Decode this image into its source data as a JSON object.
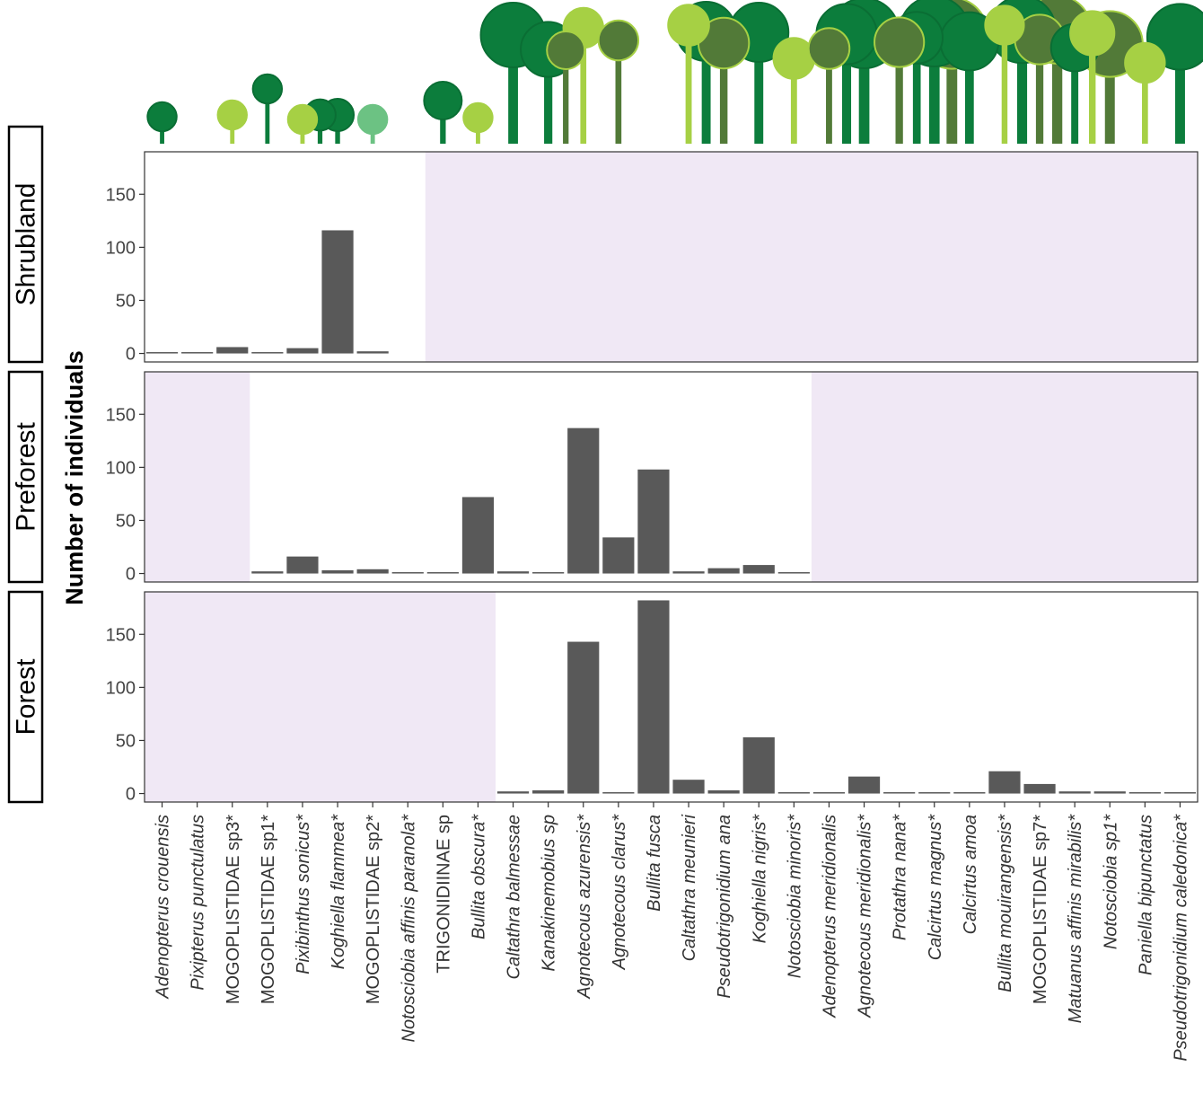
{
  "chart_data": {
    "type": "bar",
    "ylabel": "Number of individuals",
    "yticks": [
      0,
      50,
      100,
      150
    ],
    "ylim": [
      -8,
      190
    ],
    "colors": {
      "bar": "#595959",
      "shade": "#f0e8f5",
      "dark_green": "#0c7d3c",
      "olive_green": "#527a38",
      "lime_green": "#a6d044",
      "mint_green": "#6cc283"
    },
    "species": [
      {
        "label": "Adenopterus crouensis",
        "italic": true,
        "lollipop": {
          "height": 0.3,
          "size": 0.27,
          "color": "dark_green"
        }
      },
      {
        "label": "Pixipterus punctulatus",
        "italic": true,
        "lollipop": null
      },
      {
        "label": "MOGOPLISTIDAE sp3*",
        "italic": false,
        "lollipop": {
          "height": 0.32,
          "size": 0.27,
          "color": "lime_green"
        }
      },
      {
        "label": "MOGOPLISTIDAE sp1*",
        "italic": false,
        "lollipop": {
          "height": 0.61,
          "size": 0.27,
          "color": "dark_green"
        }
      },
      {
        "label": "Pixibinthus sonicus*",
        "italic": true,
        "lollipop": {
          "height": 0.27,
          "size": 0.27,
          "color": "lime_green"
        }
      },
      {
        "label": "Koghiella flammea*",
        "italic": true,
        "lollipop": {
          "height": 0.32,
          "size": 0.3,
          "color": "dark_green"
        }
      },
      {
        "label": "MOGOPLISTIDAE sp2*",
        "italic": false,
        "lollipop": {
          "height": 0.27,
          "size": 0.27,
          "color": "mint_green"
        }
      },
      {
        "label": "Notosciobia affinis paranola*",
        "italic": true,
        "lollipop": null
      },
      {
        "label": "TRIGONIDIINAE sp",
        "italic": false,
        "lollipop": {
          "height": 0.48,
          "size": 0.35,
          "color": "dark_green"
        }
      },
      {
        "label": "Bullita obscura*",
        "italic": true,
        "lollipop": {
          "height": 0.29,
          "size": 0.27,
          "color": "lime_green"
        }
      },
      {
        "label": "Caltathra balmessae",
        "italic": true,
        "lollipop": {
          "height": 1.21,
          "size": 0.6,
          "color": "dark_green"
        }
      },
      {
        "label": "Kanakinemobius sp",
        "italic": true,
        "lollipop": {
          "height": 1.05,
          "size": 0.51,
          "color": "dark_green"
        }
      },
      {
        "label": "Agnotecous azurensis*",
        "italic": true,
        "lollipop": {
          "height": 1.29,
          "size": 0.37,
          "color": "lime_green"
        }
      },
      {
        "label": "Agnotecous clarus*",
        "italic": true,
        "lollipop": {
          "height": 1.15,
          "size": 0.37,
          "color": "olive_green"
        }
      },
      {
        "label": "Bullita fusca",
        "italic": true,
        "lollipop": null
      },
      {
        "label": "Caltathra meunieri",
        "italic": true,
        "lollipop": {
          "height": 1.32,
          "size": 0.38,
          "color": "lime_green"
        }
      },
      {
        "label": "Pseudotrigonidium ana",
        "italic": true,
        "lollipop": {
          "height": 1.12,
          "size": 0.47,
          "color": "olive_green"
        }
      },
      {
        "label": "Koghiella nigris*",
        "italic": true,
        "lollipop": {
          "height": 1.24,
          "size": 0.55,
          "color": "dark_green"
        }
      },
      {
        "label": "Notosciobia minoris*",
        "italic": true,
        "lollipop": {
          "height": 0.95,
          "size": 0.38,
          "color": "lime_green"
        }
      },
      {
        "label": "Adenopterus meridionalis",
        "italic": true,
        "lollipop": {
          "height": 1.06,
          "size": 0.38,
          "color": "olive_green"
        }
      },
      {
        "label": "Agnotecous meridionalis*",
        "italic": true,
        "lollipop": {
          "height": 1.23,
          "size": 0.65,
          "color": "dark_green"
        }
      },
      {
        "label": "Protathra nana*",
        "italic": true,
        "lollipop": {
          "height": 1.13,
          "size": 0.46,
          "color": "olive_green"
        }
      },
      {
        "label": "Calcirtus magnus*",
        "italic": true,
        "lollipop": {
          "height": 1.25,
          "size": 0.65,
          "color": "dark_green"
        }
      },
      {
        "label": "Calcirtus amoa",
        "italic": true,
        "lollipop": {
          "height": 1.14,
          "size": 0.54,
          "color": "dark_green"
        }
      },
      {
        "label": "Bullita mouirangensis*",
        "italic": true,
        "lollipop": {
          "height": 1.32,
          "size": 0.36,
          "color": "lime_green"
        }
      },
      {
        "label": "MOGOPLISTIDAE sp7*",
        "italic": false,
        "lollipop": {
          "height": 1.16,
          "size": 0.46,
          "color": "olive_green"
        }
      },
      {
        "label": "Matuanus affinis mirabilis*",
        "italic": true,
        "lollipop": {
          "height": 1.07,
          "size": 0.44,
          "color": "dark_green"
        }
      },
      {
        "label": "Notosciobia sp1*",
        "italic": true,
        "lollipop": {
          "height": 1.11,
          "size": 0.61,
          "color": "olive_green"
        }
      },
      {
        "label": "Paniella bipunctatus",
        "italic": true,
        "lollipop": {
          "height": 0.9,
          "size": 0.37,
          "color": "lime_green"
        }
      },
      {
        "label": "Pseudotrigonidium caledonica*",
        "italic": true,
        "lollipop": {
          "height": 1.19,
          "size": 0.61,
          "color": "dark_green"
        }
      }
    ],
    "extra_circles": [
      {
        "between": [
          4,
          5
        ],
        "height": 0.32,
        "size": 0.29,
        "color": "dark_green"
      },
      {
        "between": [
          11,
          12
        ],
        "height": 1.04,
        "size": 0.35,
        "color": "olive_green"
      },
      {
        "between": [
          15,
          16
        ],
        "height": 1.25,
        "size": 0.55,
        "color": "dark_green"
      },
      {
        "between": [
          19,
          20
        ],
        "height": 1.22,
        "size": 0.56,
        "color": "dark_green"
      },
      {
        "between": [
          21,
          22
        ],
        "height": 1.18,
        "size": 0.48,
        "color": "dark_green"
      },
      {
        "between": [
          22,
          23
        ],
        "height": 1.23,
        "size": 0.66,
        "color": "olive_green"
      },
      {
        "between": [
          24,
          25
        ],
        "height": 1.27,
        "size": 0.62,
        "color": "dark_green"
      },
      {
        "between": [
          25,
          26
        ],
        "height": 1.27,
        "size": 0.63,
        "color": "olive_green"
      },
      {
        "between": [
          26,
          27
        ],
        "height": 1.23,
        "size": 0.41,
        "color": "lime_green"
      }
    ],
    "panels": [
      {
        "name": "Shrubland",
        "present_range": [
          0,
          7
        ],
        "values": [
          1,
          1,
          6,
          1,
          5,
          116,
          2,
          null,
          null,
          null,
          null,
          null,
          null,
          null,
          null,
          null,
          null,
          null,
          null,
          null,
          null,
          null,
          null,
          null,
          null,
          null,
          null,
          null,
          null,
          null
        ]
      },
      {
        "name": "Preforest",
        "present_range": [
          3,
          18
        ],
        "values": [
          null,
          null,
          null,
          2,
          16,
          3,
          4,
          1,
          1,
          72,
          2,
          1,
          137,
          34,
          98,
          2,
          5,
          8,
          1,
          null,
          null,
          null,
          null,
          null,
          null,
          null,
          null,
          null,
          null,
          null
        ]
      },
      {
        "name": "Forest",
        "present_range": [
          10,
          29
        ],
        "values": [
          null,
          null,
          null,
          null,
          null,
          null,
          null,
          null,
          null,
          null,
          2,
          3,
          143,
          1,
          182,
          13,
          3,
          53,
          1,
          1,
          16,
          1,
          1,
          1,
          21,
          9,
          2,
          2,
          1,
          1
        ]
      }
    ]
  }
}
